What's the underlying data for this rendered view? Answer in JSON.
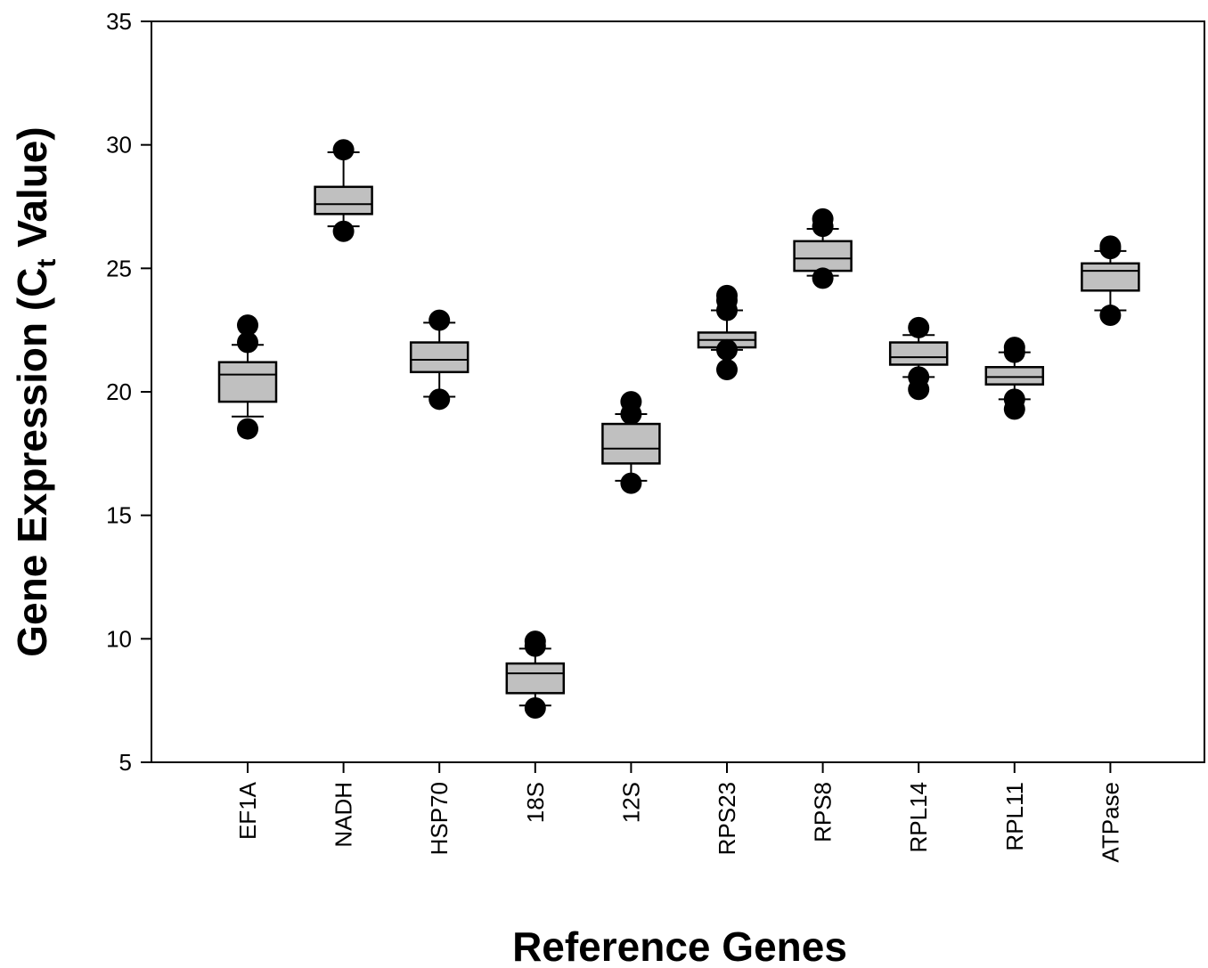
{
  "chart_data": {
    "type": "box",
    "xlabel": "Reference Genes",
    "ylabel_main": "Gene Expression (C",
    "ylabel_sub": "t",
    "ylabel_tail": " Value)",
    "ylim": [
      5,
      35
    ],
    "yticks": [
      5,
      10,
      15,
      20,
      25,
      30,
      35
    ],
    "grid": false,
    "box_fill": "#c0c0c0",
    "marker_color": "#000000",
    "categories": [
      "EF1A",
      "NADH",
      "HSP70",
      "18S",
      "12S",
      "RPS23",
      "RPS8",
      "RPL14",
      "RPL11",
      "ATPase"
    ],
    "boxes": [
      {
        "whisker_low": 19.0,
        "q1": 19.6,
        "median": 20.7,
        "q3": 21.2,
        "whisker_high": 21.9,
        "outliers": [
          18.5,
          22.0,
          22.7
        ]
      },
      {
        "whisker_low": 26.7,
        "q1": 27.2,
        "median": 27.6,
        "q3": 28.3,
        "whisker_high": 29.7,
        "outliers": [
          26.5,
          29.8
        ]
      },
      {
        "whisker_low": 19.8,
        "q1": 20.8,
        "median": 21.3,
        "q3": 22.0,
        "whisker_high": 22.8,
        "outliers": [
          19.7,
          22.9
        ]
      },
      {
        "whisker_low": 7.3,
        "q1": 7.8,
        "median": 8.6,
        "q3": 9.0,
        "whisker_high": 9.6,
        "outliers": [
          7.2,
          9.7,
          9.9
        ]
      },
      {
        "whisker_low": 16.4,
        "q1": 17.1,
        "median": 17.7,
        "q3": 18.7,
        "whisker_high": 19.1,
        "outliers": [
          16.3,
          19.1,
          19.6
        ]
      },
      {
        "whisker_low": 21.7,
        "q1": 21.8,
        "median": 22.1,
        "q3": 22.4,
        "whisker_high": 23.3,
        "outliers": [
          20.9,
          21.7,
          23.3,
          23.7,
          23.9
        ]
      },
      {
        "whisker_low": 24.7,
        "q1": 24.9,
        "median": 25.4,
        "q3": 26.1,
        "whisker_high": 26.6,
        "outliers": [
          24.6,
          26.7,
          27.0
        ]
      },
      {
        "whisker_low": 20.6,
        "q1": 21.1,
        "median": 21.4,
        "q3": 22.0,
        "whisker_high": 22.3,
        "outliers": [
          20.1,
          20.6,
          22.6
        ]
      },
      {
        "whisker_low": 19.7,
        "q1": 20.3,
        "median": 20.6,
        "q3": 21.0,
        "whisker_high": 21.6,
        "outliers": [
          19.3,
          19.7,
          21.6,
          21.8
        ]
      },
      {
        "whisker_low": 23.3,
        "q1": 24.1,
        "median": 24.9,
        "q3": 25.2,
        "whisker_high": 25.7,
        "outliers": [
          23.1,
          25.8,
          25.9
        ]
      }
    ]
  }
}
